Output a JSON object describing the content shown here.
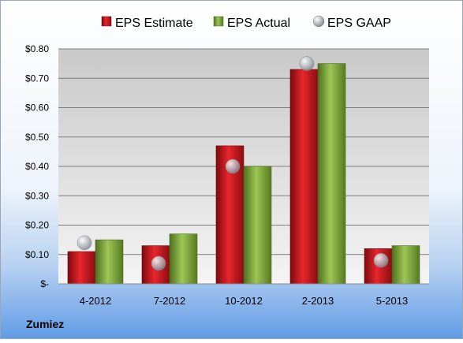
{
  "chart_data": {
    "type": "bar",
    "categories": [
      "4-2012",
      "7-2012",
      "10-2012",
      "2-2013",
      "5-2013"
    ],
    "series": [
      {
        "name": "EPS Estimate",
        "values": [
          0.11,
          0.13,
          0.47,
          0.73,
          0.12
        ],
        "color": "#c0141b",
        "marker": "bar"
      },
      {
        "name": "EPS Actual",
        "values": [
          0.15,
          0.17,
          0.4,
          0.75,
          0.13
        ],
        "color": "#7fa636",
        "marker": "bar"
      },
      {
        "name": "EPS GAAP",
        "values": [
          0.14,
          0.07,
          0.4,
          0.75,
          0.08
        ],
        "color": "#a8acb2",
        "marker": "sphere"
      }
    ],
    "yticks": [
      {
        "value": 0.0,
        "label": "$-"
      },
      {
        "value": 0.1,
        "label": "$0.10"
      },
      {
        "value": 0.2,
        "label": "$0.20"
      },
      {
        "value": 0.3,
        "label": "$0.30"
      },
      {
        "value": 0.4,
        "label": "$0.40"
      },
      {
        "value": 0.5,
        "label": "$0.50"
      },
      {
        "value": 0.6,
        "label": "$0.60"
      },
      {
        "value": 0.7,
        "label": "$0.70"
      },
      {
        "value": 0.8,
        "label": "$0.80"
      }
    ],
    "ylim": [
      0,
      0.8
    ],
    "grid": true,
    "legend": "top",
    "footer_label": "Zumiez"
  }
}
